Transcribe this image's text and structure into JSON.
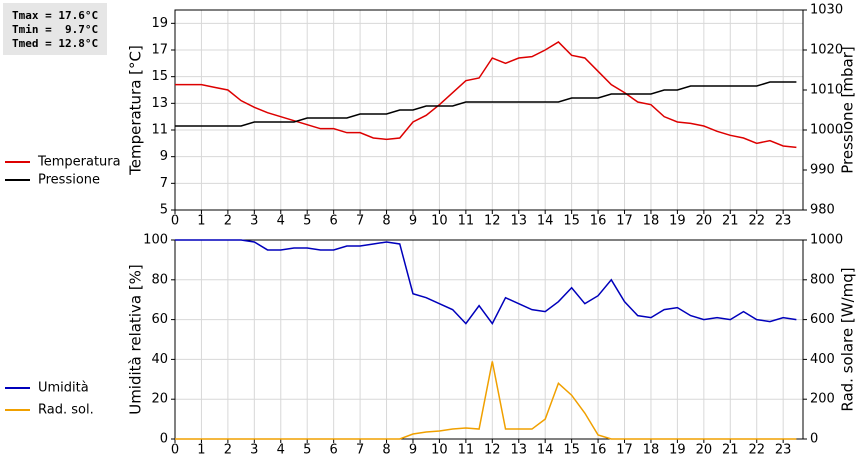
{
  "chart_data": [
    {
      "type": "line",
      "annotations": [
        "Tmax = 17.6°C",
        "Tmin =  9.7°C",
        "Tmed = 12.8°C"
      ],
      "y_label": "Temperatura [°C]",
      "y2_label": "Pressione [mbar]",
      "x": [
        0,
        0.5,
        1,
        1.5,
        2,
        2.5,
        3,
        3.5,
        4,
        4.5,
        5,
        5.5,
        6,
        6.5,
        7,
        7.5,
        8,
        8.5,
        9,
        9.5,
        10,
        10.5,
        11,
        11.5,
        12,
        12.5,
        13,
        13.5,
        14,
        14.5,
        15,
        15.5,
        16,
        16.5,
        17,
        17.5,
        18,
        18.5,
        19,
        19.5,
        20,
        20.5,
        21,
        21.5,
        22,
        22.5,
        23,
        23.5
      ],
      "xlim": [
        0,
        23.75
      ],
      "xticks": [
        0,
        1,
        2,
        3,
        4,
        5,
        6,
        7,
        8,
        9,
        10,
        11,
        12,
        13,
        14,
        15,
        16,
        17,
        18,
        19,
        20,
        21,
        22,
        23
      ],
      "ylim": [
        5,
        20
      ],
      "yticks": [
        5,
        7,
        9,
        11,
        13,
        15,
        17,
        19
      ],
      "y2lim": [
        980,
        1030
      ],
      "y2ticks": [
        980,
        990,
        1000,
        1010,
        1020,
        1030
      ],
      "grid": true,
      "legend": "left",
      "series": [
        {
          "name": "Temperatura",
          "color": "#dd0000",
          "values": [
            14.4,
            14.4,
            14.4,
            14.2,
            14.0,
            13.2,
            12.7,
            12.3,
            12.0,
            11.7,
            11.4,
            11.1,
            11.1,
            10.8,
            10.8,
            10.4,
            10.3,
            10.4,
            11.6,
            12.1,
            12.9,
            13.8,
            14.7,
            14.9,
            16.4,
            16.0,
            16.4,
            16.5,
            17.0,
            17.6,
            16.6,
            16.4,
            15.4,
            14.4,
            13.8,
            13.1,
            12.9,
            12.0,
            11.6,
            11.5,
            11.3,
            10.9,
            10.6,
            10.4,
            10.0,
            10.2,
            9.8,
            9.7
          ]
        },
        {
          "name": "Pressione",
          "color": "#000000",
          "axis": "y2",
          "values": [
            1001,
            1001,
            1001,
            1001,
            1001,
            1001,
            1002,
            1002,
            1002,
            1002,
            1003,
            1003,
            1003,
            1003,
            1004,
            1004,
            1004,
            1005,
            1005,
            1006,
            1006,
            1006,
            1007,
            1007,
            1007,
            1007,
            1007,
            1007,
            1007,
            1007,
            1008,
            1008,
            1008,
            1009,
            1009,
            1009,
            1009,
            1010,
            1010,
            1011,
            1011,
            1011,
            1011,
            1011,
            1011,
            1012,
            1012,
            1012
          ]
        }
      ]
    },
    {
      "type": "line",
      "y_label": "Umidità relativa [%]",
      "y2_label": "Rad. solare [W/mq]",
      "x": [
        0,
        0.5,
        1,
        1.5,
        2,
        2.5,
        3,
        3.5,
        4,
        4.5,
        5,
        5.5,
        6,
        6.5,
        7,
        7.5,
        8,
        8.5,
        9,
        9.5,
        10,
        10.5,
        11,
        11.5,
        12,
        12.5,
        13,
        13.5,
        14,
        14.5,
        15,
        15.5,
        16,
        16.5,
        17,
        17.5,
        18,
        18.5,
        19,
        19.5,
        20,
        20.5,
        21,
        21.5,
        22,
        22.5,
        23,
        23.5
      ],
      "xlim": [
        0,
        23.75
      ],
      "xticks": [
        0,
        1,
        2,
        3,
        4,
        5,
        6,
        7,
        8,
        9,
        10,
        11,
        12,
        13,
        14,
        15,
        16,
        17,
        18,
        19,
        20,
        21,
        22,
        23
      ],
      "ylim": [
        0,
        100
      ],
      "yticks": [
        0,
        20,
        40,
        60,
        80,
        100
      ],
      "y2lim": [
        0,
        1000
      ],
      "y2ticks": [
        0,
        200,
        400,
        600,
        800,
        1000
      ],
      "grid": true,
      "legend": "left",
      "series": [
        {
          "name": "Umidità",
          "color": "#0000bb",
          "values": [
            100,
            100,
            100,
            100,
            100,
            100,
            99,
            95,
            95,
            96,
            96,
            95,
            95,
            97,
            97,
            98,
            99,
            98,
            73,
            71,
            68,
            65,
            58,
            67,
            58,
            71,
            68,
            65,
            64,
            69,
            76,
            68,
            72,
            80,
            69,
            62,
            61,
            65,
            66,
            62,
            60,
            61,
            60,
            64,
            60,
            59,
            61,
            60
          ]
        },
        {
          "name": "Rad. sol.",
          "color": "#f0a000",
          "axis": "y2",
          "values": [
            0,
            0,
            0,
            0,
            0,
            0,
            0,
            0,
            0,
            0,
            0,
            0,
            0,
            0,
            0,
            0,
            0,
            0,
            25,
            35,
            40,
            50,
            55,
            50,
            390,
            50,
            50,
            50,
            100,
            280,
            220,
            130,
            20,
            0,
            0,
            0,
            0,
            0,
            0,
            0,
            0,
            0,
            0,
            0,
            0,
            0,
            0,
            0
          ]
        }
      ]
    }
  ]
}
